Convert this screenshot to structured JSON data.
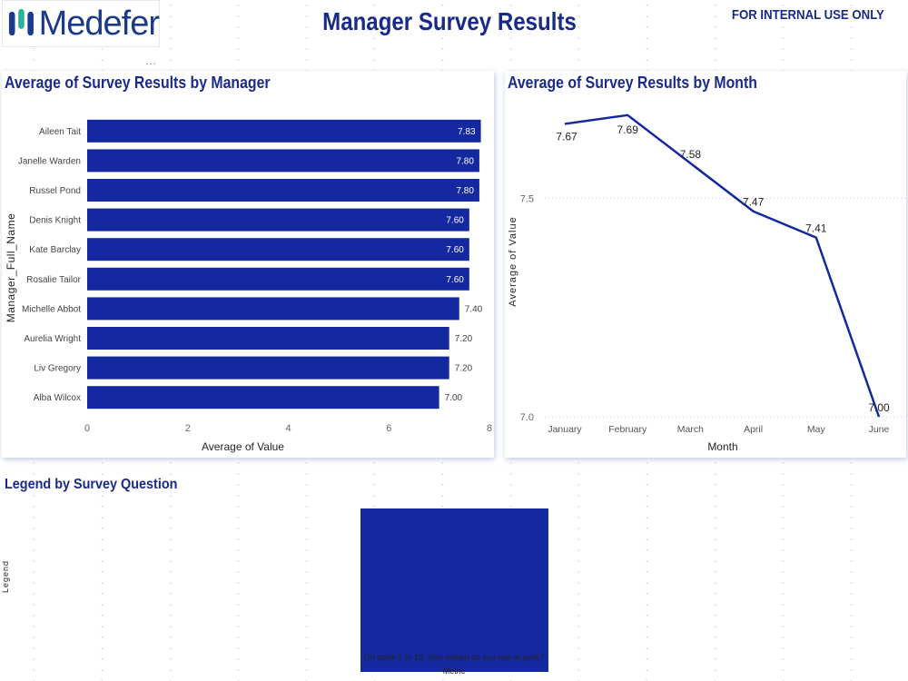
{
  "header": {
    "logo_text": "Medefer",
    "title": "Manager Survey Results",
    "notice": "FOR INTERNAL USE ONLY",
    "more_label": "..."
  },
  "colors": {
    "primary": "#1428a0",
    "title": "#1a2a88",
    "logo_blue": "#1c3a8c",
    "logo_green": "#2bb39a"
  },
  "chart_data": [
    {
      "type": "bar",
      "orientation": "horizontal",
      "title": "Average of Survey Results by Manager",
      "categories": [
        "Aileen Tait",
        "Janelle Warden",
        "Russel Pond",
        "Denis Knight",
        "Kate Barclay",
        "Rosalie Tailor",
        "Michelle Abbot",
        "Aurelia Wright",
        "Liv Gregory",
        "Alba Wilcox"
      ],
      "values": [
        7.83,
        7.8,
        7.8,
        7.6,
        7.6,
        7.6,
        7.4,
        7.2,
        7.2,
        7.0
      ],
      "value_labels": [
        "7.83",
        "7.80",
        "7.80",
        "7.60",
        "7.60",
        "7.60",
        "7.40",
        "7.20",
        "7.20",
        "7.00"
      ],
      "xlabel": "Average of Value",
      "ylabel": "Manager_Full_Name",
      "xlim": [
        0,
        8
      ],
      "xticks": [
        0,
        2,
        4,
        6,
        8
      ],
      "grid": false
    },
    {
      "type": "line",
      "title": "Average of Survey Results by Month",
      "categories": [
        "January",
        "February",
        "March",
        "April",
        "May",
        "June"
      ],
      "values": [
        7.67,
        7.69,
        7.58,
        7.47,
        7.41,
        7.0
      ],
      "value_labels": [
        "7.67",
        "7.69",
        "7.58",
        "7.47",
        "7.41",
        "7.00"
      ],
      "xlabel": "Month",
      "ylabel": "Average of Value",
      "ylim": [
        7.0,
        7.7
      ],
      "yticks": [
        7.0,
        7.5
      ],
      "ytick_labels": [
        "7.0",
        "7.5"
      ],
      "grid": true
    },
    {
      "type": "bar",
      "title": "Legend by Survey Question",
      "categories": [
        "On scale 1 to 10, how valued do you feel at work?"
      ],
      "xlabel": "Metric",
      "ylabel": "Legend"
    }
  ]
}
